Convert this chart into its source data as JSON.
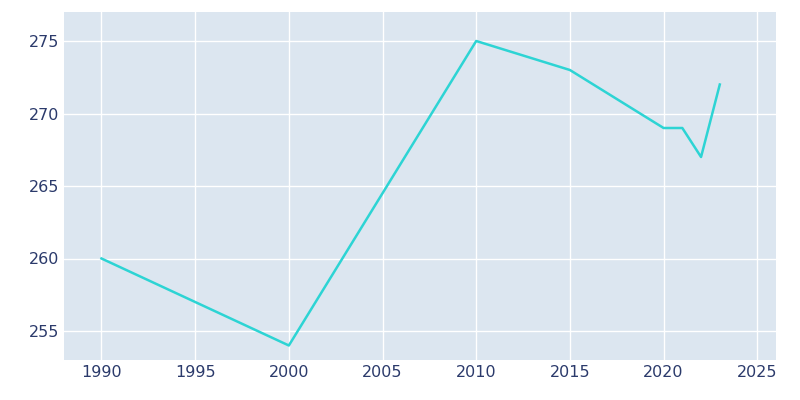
{
  "x": [
    1990,
    2000,
    2010,
    2015,
    2020,
    2021,
    2022,
    2023
  ],
  "y": [
    260,
    254,
    275,
    273,
    269,
    269,
    267,
    272
  ],
  "line_color": "#2dd4d4",
  "axes_background_color": "#dce6f0",
  "fig_background_color": "#ffffff",
  "grid_color": "#ffffff",
  "tick_color": "#2b3a6b",
  "xlim": [
    1988,
    2026
  ],
  "ylim": [
    253,
    277
  ],
  "xticks": [
    1990,
    1995,
    2000,
    2005,
    2010,
    2015,
    2020,
    2025
  ],
  "yticks": [
    255,
    260,
    265,
    270,
    275
  ],
  "linewidth": 1.8,
  "figsize": [
    8.0,
    4.0
  ],
  "dpi": 100,
  "tick_fontsize": 11.5
}
